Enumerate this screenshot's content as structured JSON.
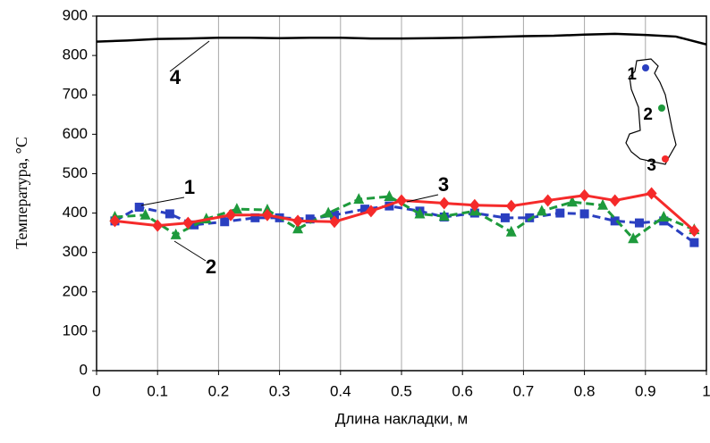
{
  "chart_data": {
    "type": "line",
    "xlabel": "Длина накладки, м",
    "ylabel": "Температура, °C",
    "xlim": [
      0,
      1
    ],
    "xticks": [
      0,
      0.1,
      0.2,
      0.3,
      0.4,
      0.5,
      0.6,
      0.7,
      0.8,
      0.9,
      1
    ],
    "ylim": [
      0,
      900
    ],
    "yticks": [
      0,
      100,
      200,
      300,
      400,
      500,
      600,
      700,
      800,
      900
    ],
    "grid": "x",
    "series": [
      {
        "name": "1",
        "color": "#2a3fc0",
        "marker": "square",
        "linestyle": "dashed",
        "x": [
          0.03,
          0.07,
          0.12,
          0.16,
          0.21,
          0.26,
          0.3,
          0.35,
          0.39,
          0.44,
          0.48,
          0.53,
          0.57,
          0.62,
          0.67,
          0.71,
          0.76,
          0.8,
          0.85,
          0.89,
          0.93,
          0.98
        ],
        "values": [
          380,
          415,
          398,
          370,
          378,
          388,
          388,
          385,
          395,
          410,
          418,
          405,
          390,
          400,
          388,
          388,
          400,
          398,
          380,
          375,
          380,
          325
        ]
      },
      {
        "name": "2",
        "color": "#1e9a3c",
        "marker": "triangle",
        "linestyle": "dashed",
        "x": [
          0.03,
          0.08,
          0.13,
          0.18,
          0.23,
          0.28,
          0.33,
          0.38,
          0.43,
          0.48,
          0.53,
          0.57,
          0.62,
          0.68,
          0.73,
          0.78,
          0.83,
          0.88,
          0.93,
          0.98
        ],
        "values": [
          390,
          395,
          345,
          385,
          410,
          408,
          360,
          400,
          435,
          442,
          398,
          392,
          405,
          352,
          405,
          428,
          420,
          335,
          390,
          358
        ]
      },
      {
        "name": "3",
        "color": "#f52a2a",
        "marker": "diamond",
        "linestyle": "solid",
        "x": [
          0.03,
          0.1,
          0.15,
          0.22,
          0.28,
          0.33,
          0.39,
          0.45,
          0.5,
          0.57,
          0.62,
          0.68,
          0.74,
          0.8,
          0.85,
          0.91,
          0.98
        ],
        "values": [
          380,
          368,
          375,
          395,
          395,
          380,
          378,
          405,
          432,
          425,
          420,
          418,
          432,
          445,
          432,
          450,
          355
        ]
      },
      {
        "name": "4",
        "color": "#000000",
        "marker": "none",
        "linestyle": "solid",
        "x": [
          0,
          0.05,
          0.1,
          0.15,
          0.2,
          0.25,
          0.3,
          0.35,
          0.4,
          0.45,
          0.5,
          0.55,
          0.6,
          0.65,
          0.7,
          0.75,
          0.8,
          0.85,
          0.9,
          0.95,
          1
        ],
        "values": [
          835,
          838,
          842,
          843,
          845,
          845,
          844,
          845,
          845,
          843,
          843,
          844,
          845,
          847,
          849,
          850,
          853,
          855,
          852,
          848,
          828
        ]
      }
    ],
    "inset_labels": [
      "1",
      "2",
      "3"
    ]
  }
}
